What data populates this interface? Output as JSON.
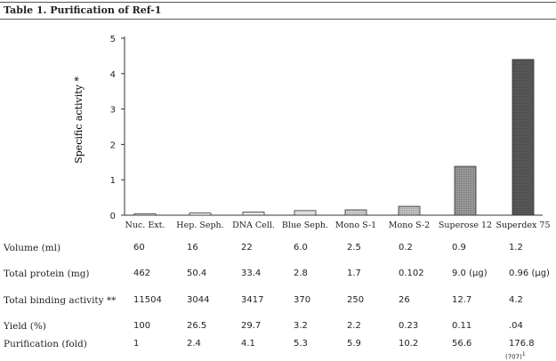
{
  "title": "Table 1. Purification of Ref-1",
  "chart_data": {
    "type": "bar",
    "categories": [
      "Nuc. Ext.",
      "Hep. Seph.",
      "DNA Cell.",
      "Blue Seph.",
      "Mono S-1",
      "Mono S-2",
      "Superose 12",
      "Superdex 75"
    ],
    "values": [
      0.02,
      0.06,
      0.09,
      0.13,
      0.15,
      0.25,
      1.38,
      4.4
    ],
    "ylabel": "Specific activity *",
    "xlabel": "",
    "ylim": [
      0,
      5
    ],
    "yticks": [
      0,
      1,
      2,
      3,
      4,
      5
    ],
    "bar_fills": [
      "#ffffff",
      "#f4f4f4",
      "#e8e8e8",
      "#dedede",
      "#d2d2d2",
      "#c4c4c4",
      "#9a9a9a",
      "#5a5a5a"
    ],
    "grid": false
  },
  "table": {
    "rows": [
      {
        "label": "Volume (ml)",
        "values": [
          "60",
          "16",
          "22",
          "6.0",
          "2.5",
          "0.2",
          "0.9",
          "1.2"
        ]
      },
      {
        "label": "Total protein (mg)",
        "values": [
          "462",
          "50.4",
          "33.4",
          "2.8",
          "1.7",
          "0.102",
          "9.0 (µg)",
          "0.96 (µg)"
        ]
      },
      {
        "label": "Total binding activity **",
        "values": [
          "11504",
          "3044",
          "3417",
          "370",
          "250",
          "26",
          "12.7",
          "4.2"
        ]
      },
      {
        "label": "Yield (%)",
        "values": [
          "100",
          "26.5",
          "29.7",
          "3.2",
          "2.2",
          "0.23",
          "0.11",
          ".04"
        ]
      },
      {
        "label": "Purification (fold)",
        "values": [
          "1",
          "2.4",
          "4.1",
          "5.3",
          "5.9",
          "10.2",
          "56.6",
          "176.8"
        ]
      }
    ],
    "footnote_value": "(707)",
    "footnote_marker": "1"
  }
}
